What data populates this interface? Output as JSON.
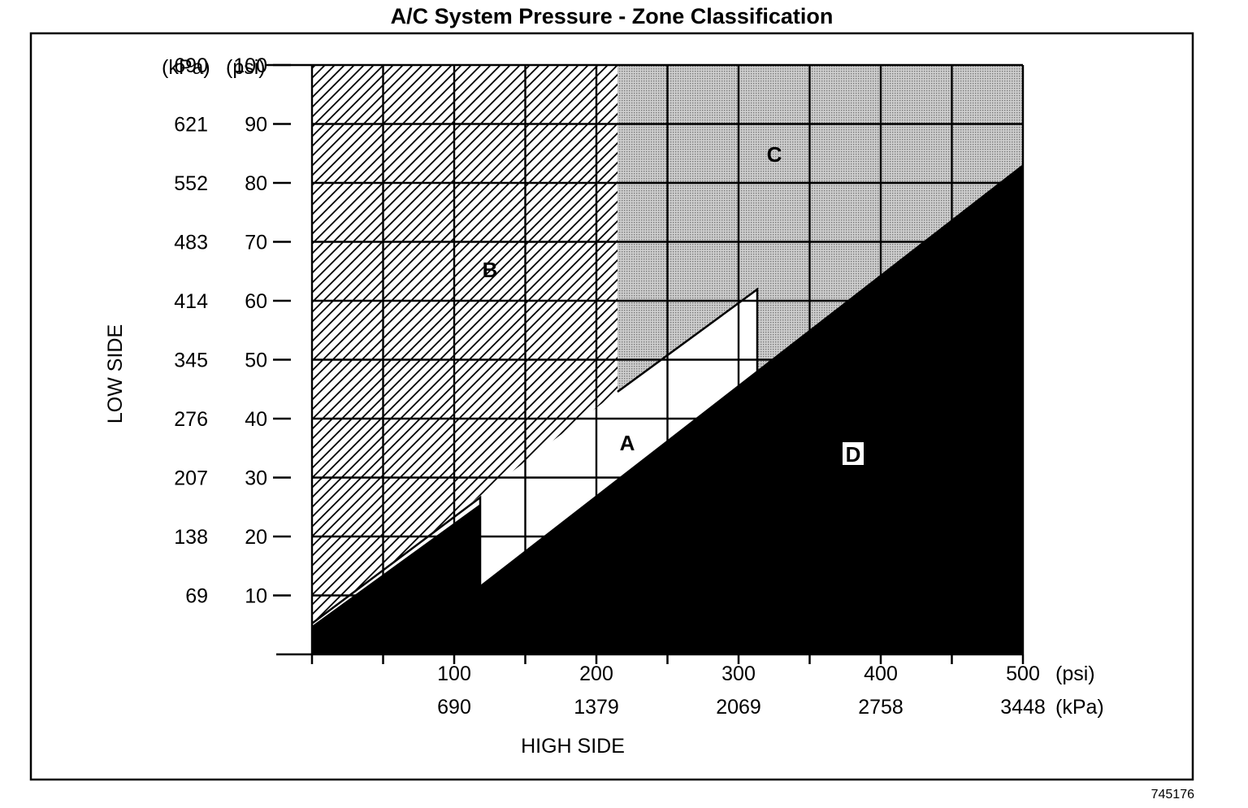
{
  "title": "A/C System Pressure - Zone Classification",
  "figure_id": "745176",
  "y_axis": {
    "label": "LOW SIDE",
    "unit_kpa": "(kPa)",
    "unit_psi": "(psi)",
    "ticks": [
      {
        "psi": "10",
        "kpa": "69"
      },
      {
        "psi": "20",
        "kpa": "138"
      },
      {
        "psi": "30",
        "kpa": "207"
      },
      {
        "psi": "40",
        "kpa": "276"
      },
      {
        "psi": "50",
        "kpa": "345"
      },
      {
        "psi": "60",
        "kpa": "414"
      },
      {
        "psi": "70",
        "kpa": "483"
      },
      {
        "psi": "80",
        "kpa": "552"
      },
      {
        "psi": "90",
        "kpa": "621"
      },
      {
        "psi": "100",
        "kpa": "690"
      }
    ]
  },
  "x_axis": {
    "label": "HIGH SIDE",
    "unit_psi": "(psi)",
    "unit_kpa": "(kPa)",
    "ticks": [
      {
        "psi": "100",
        "kpa": "690"
      },
      {
        "psi": "200",
        "kpa": "1379"
      },
      {
        "psi": "300",
        "kpa": "2069"
      },
      {
        "psi": "400",
        "kpa": "2758"
      },
      {
        "psi": "500",
        "kpa": "3448"
      }
    ]
  },
  "zones": {
    "a": "A",
    "b": "B",
    "c": "C",
    "d": "D"
  }
}
